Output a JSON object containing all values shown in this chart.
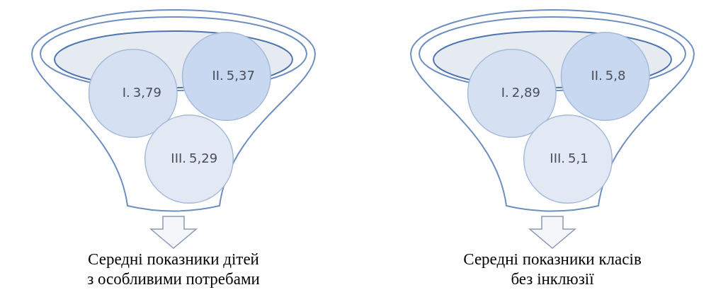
{
  "chart_data": [
    {
      "type": "other",
      "title": "Середні показники дітей з особливими потребами",
      "categories": [
        "I.",
        "II.",
        "III."
      ],
      "values": [
        3.79,
        5.37,
        5.29
      ],
      "value_labels": [
        "3,79",
        "5,37",
        "5,29"
      ],
      "colors": [
        "#d5e1f2",
        "#c8d8f0",
        "#e2e9f4"
      ]
    },
    {
      "type": "other",
      "title": "Середні показники класів без інклюзії",
      "categories": [
        "I.",
        "II.",
        "III."
      ],
      "values": [
        2.89,
        5.8,
        5.1
      ],
      "value_labels": [
        "2,89",
        "5,8",
        "5,1"
      ],
      "colors": [
        "#d5e1f2",
        "#c8d8f0",
        "#e2e9f4"
      ]
    }
  ]
}
